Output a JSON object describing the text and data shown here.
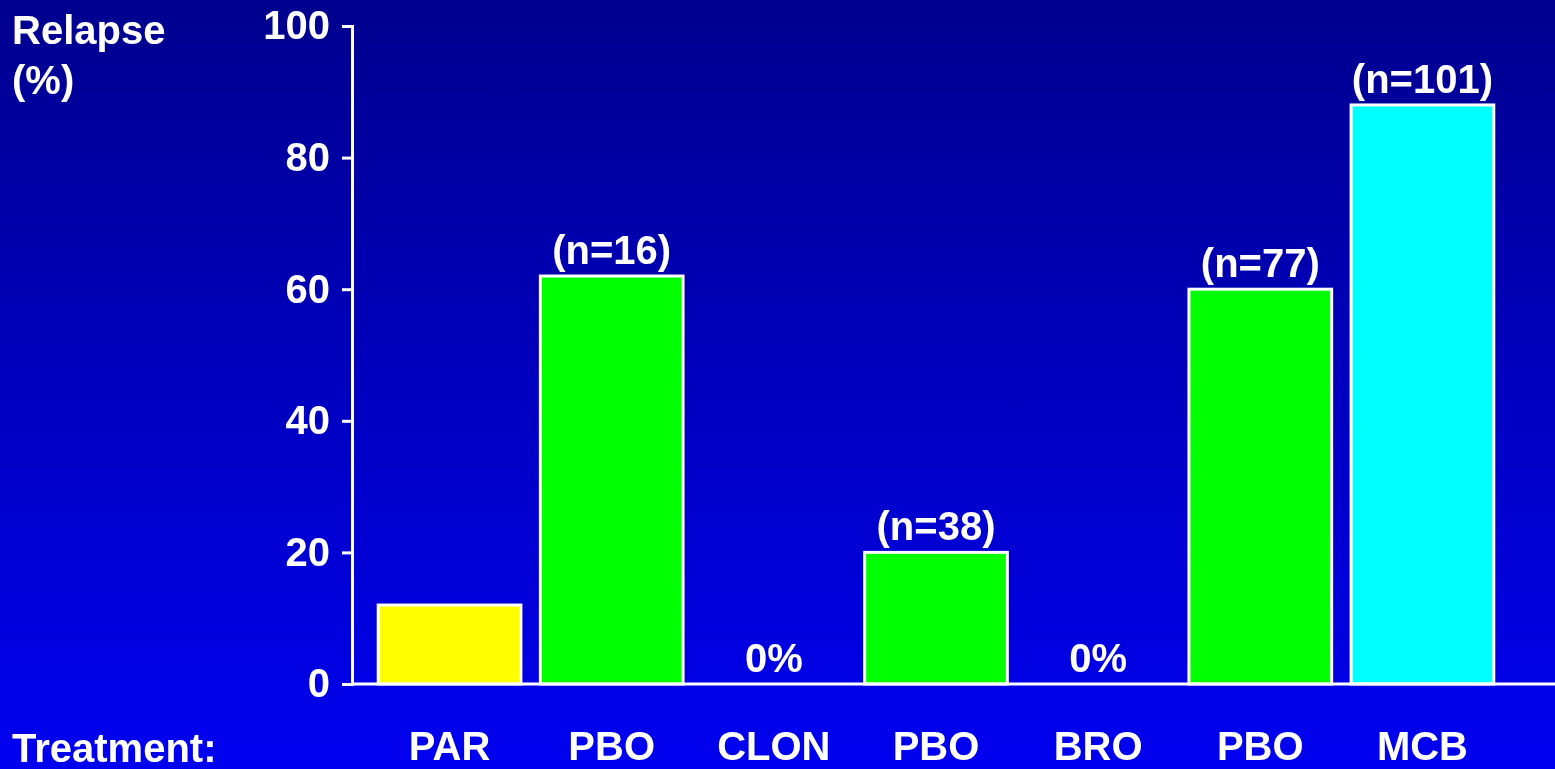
{
  "chart_data": {
    "type": "bar",
    "xlabel": "Treatment:",
    "ylabel": "Relapse (%)",
    "categories": [
      "PAR",
      "PBO",
      "CLON",
      "PBO",
      "BRO",
      "PBO",
      "MCB"
    ],
    "values": [
      12,
      62,
      0,
      20,
      0,
      60,
      88
    ],
    "colors": [
      "#ffff00",
      "#00ff00",
      "#ffffff",
      "#00ff00",
      "#ffffff",
      "#00ff00",
      "#00ffff"
    ],
    "value_labels": [
      null,
      null,
      "0%",
      null,
      "0%",
      null,
      null
    ],
    "annotations": [
      {
        "text": "(n=16)",
        "x": "PBO",
        "y": 62
      },
      "(n=38)",
      "(n=77)",
      {
        "text": "(n=101)",
        "x": "MCB",
        "y": 88
      }
    ],
    "ylim": [
      0,
      100
    ],
    "yticks": [
      0,
      20,
      40,
      60,
      80,
      100
    ],
    "grid": false
  }
}
